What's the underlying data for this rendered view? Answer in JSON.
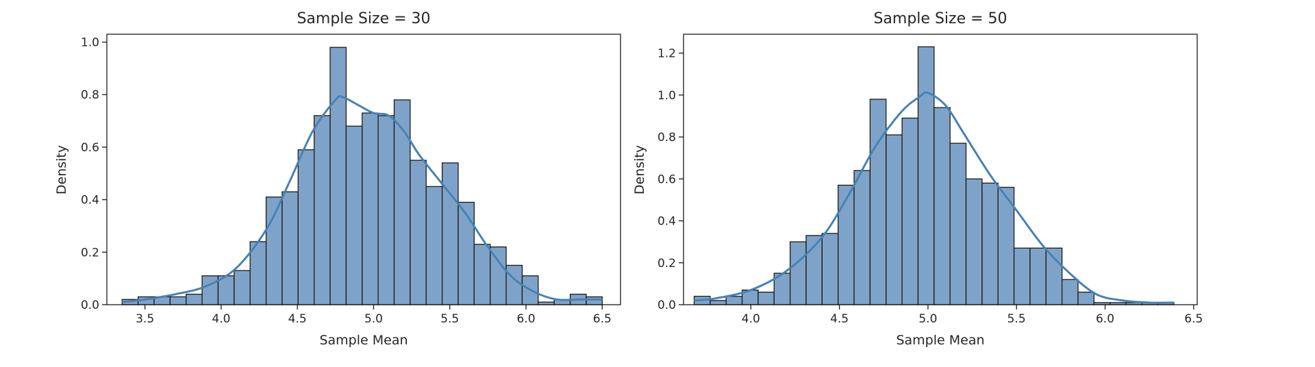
{
  "chart_data": [
    {
      "type": "bar",
      "title": "Sample Size = 30",
      "xlabel": "Sample Mean",
      "ylabel": "Density",
      "xlim": [
        3.25,
        6.62
      ],
      "ylim": [
        0,
        1.03
      ],
      "xticks": [
        3.5,
        4.0,
        4.5,
        5.0,
        5.5,
        6.0,
        6.5
      ],
      "xtick_labels": [
        "3.5",
        "4.0",
        "4.5",
        "5.0",
        "5.5",
        "6.0",
        "6.5"
      ],
      "yticks": [
        0.0,
        0.2,
        0.4,
        0.6,
        0.8,
        1.0
      ],
      "ytick_labels": [
        "0.0",
        "0.2",
        "0.4",
        "0.6",
        "0.8",
        "1.0"
      ],
      "bin_start": 3.35,
      "bin_width": 0.105,
      "values": [
        0.02,
        0.03,
        0.03,
        0.03,
        0.04,
        0.11,
        0.11,
        0.13,
        0.24,
        0.41,
        0.43,
        0.59,
        0.72,
        0.98,
        0.68,
        0.73,
        0.72,
        0.78,
        0.55,
        0.45,
        0.54,
        0.39,
        0.23,
        0.22,
        0.15,
        0.11,
        0.01,
        0.02,
        0.04,
        0.03
      ],
      "kde": {
        "x": [
          3.35,
          3.5,
          3.7,
          3.9,
          4.1,
          4.3,
          4.45,
          4.6,
          4.75,
          4.8,
          4.9,
          5.0,
          5.1,
          5.2,
          5.3,
          5.45,
          5.6,
          5.75,
          5.9,
          6.05,
          6.2,
          6.35,
          6.5
        ],
        "y": [
          0.01,
          0.02,
          0.04,
          0.07,
          0.14,
          0.29,
          0.47,
          0.66,
          0.78,
          0.79,
          0.76,
          0.73,
          0.72,
          0.66,
          0.57,
          0.46,
          0.35,
          0.22,
          0.11,
          0.05,
          0.02,
          0.02,
          0.02
        ]
      },
      "color": "#7fa3c8",
      "line_color": "#4682b4",
      "grid": false
    },
    {
      "type": "bar",
      "title": "Sample Size = 50",
      "xlabel": "Sample Mean",
      "ylabel": "Density",
      "xlim": [
        3.62,
        6.52
      ],
      "ylim": [
        0,
        1.29
      ],
      "xticks": [
        4.0,
        4.5,
        5.0,
        5.5,
        6.0,
        6.5
      ],
      "xtick_labels": [
        "4.0",
        "4.5",
        "5.0",
        "5.5",
        "6.0",
        "6.5"
      ],
      "yticks": [
        0.0,
        0.2,
        0.4,
        0.6,
        0.8,
        1.0,
        1.2
      ],
      "ytick_labels": [
        "0.0",
        "0.2",
        "0.4",
        "0.6",
        "0.8",
        "1.0",
        "1.2"
      ],
      "bin_start": 3.68,
      "bin_width": 0.0903,
      "values": [
        0.04,
        0.02,
        0.04,
        0.07,
        0.06,
        0.15,
        0.3,
        0.33,
        0.34,
        0.57,
        0.64,
        0.98,
        0.81,
        0.89,
        1.23,
        0.94,
        0.77,
        0.6,
        0.58,
        0.56,
        0.27,
        0.27,
        0.27,
        0.12,
        0.06,
        0.01,
        0.01,
        0.01,
        0.01,
        0.01
      ],
      "kde": {
        "x": [
          3.68,
          3.8,
          4.0,
          4.2,
          4.4,
          4.55,
          4.7,
          4.85,
          4.95,
          5.0,
          5.1,
          5.2,
          5.35,
          5.5,
          5.65,
          5.8,
          5.95,
          6.1,
          6.25,
          6.39
        ],
        "y": [
          0.02,
          0.03,
          0.07,
          0.16,
          0.32,
          0.52,
          0.75,
          0.92,
          0.99,
          1.01,
          0.95,
          0.82,
          0.62,
          0.45,
          0.28,
          0.15,
          0.05,
          0.02,
          0.01,
          0.01
        ]
      },
      "color": "#7fa3c8",
      "line_color": "#4682b4",
      "grid": false
    }
  ]
}
